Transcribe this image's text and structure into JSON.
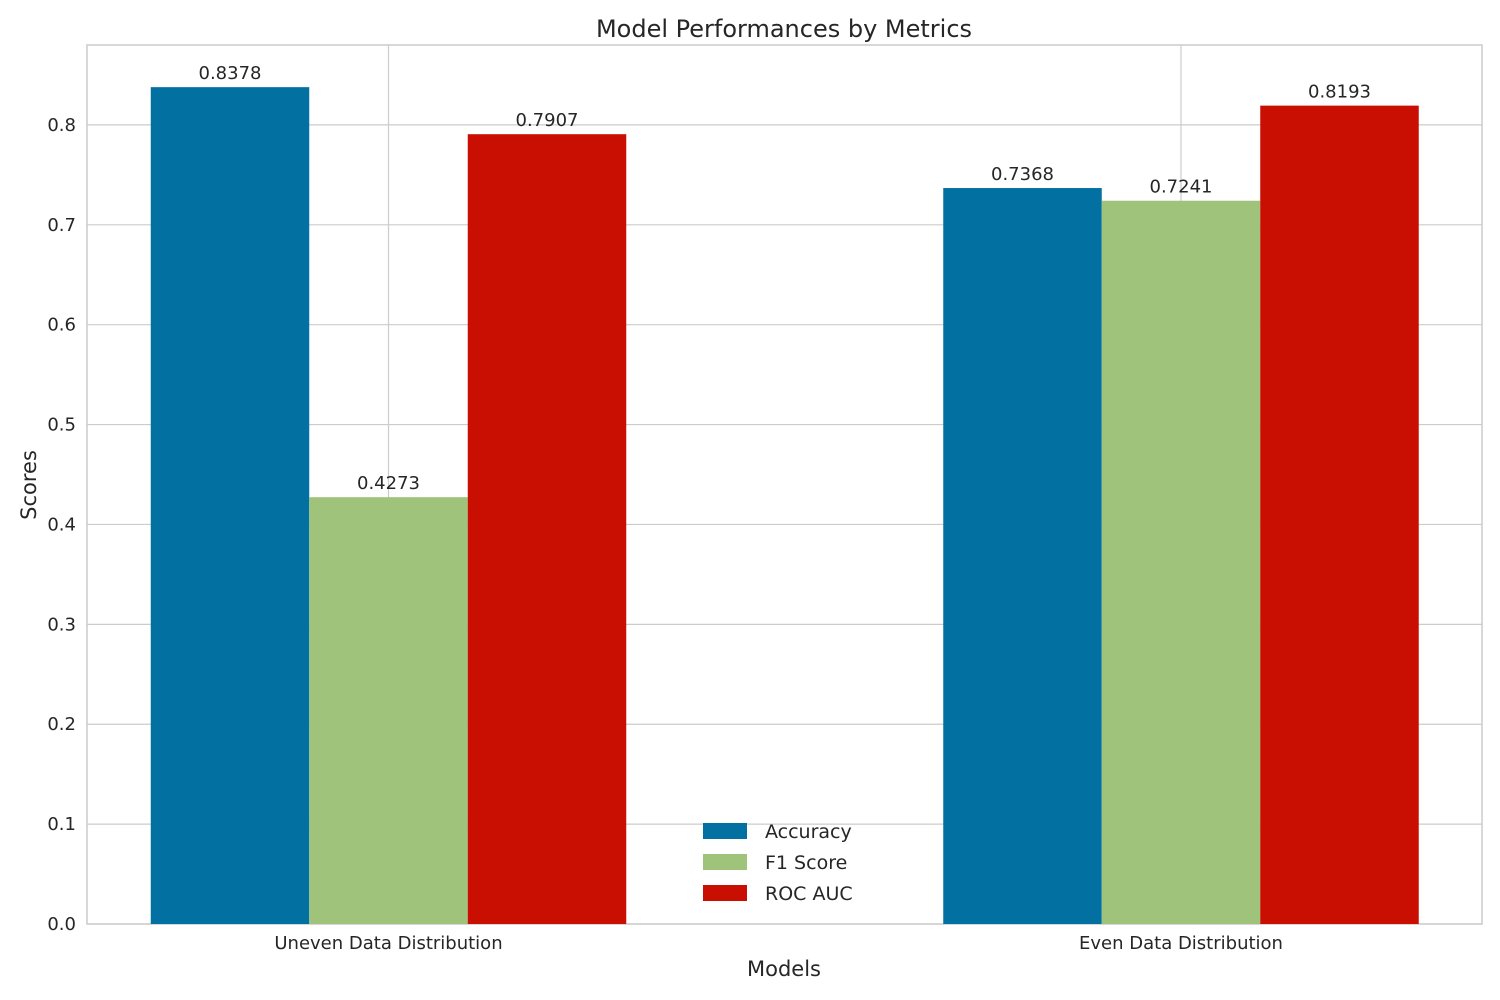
{
  "chart_data": {
    "type": "bar",
    "title": "Model Performances by Metrics",
    "xlabel": "Models",
    "ylabel": "Scores",
    "categories": [
      "Uneven Data Distribution",
      "Even Data Distribution"
    ],
    "series": [
      {
        "name": "Accuracy",
        "values": [
          0.8378,
          0.7368
        ],
        "color": "#0271a1",
        "labels": [
          "0.8378",
          "0.7368"
        ]
      },
      {
        "name": "F1 Score",
        "values": [
          0.4273,
          0.7241
        ],
        "color": "#9fc37a",
        "labels": [
          "0.4273",
          "0.7241"
        ]
      },
      {
        "name": "ROC AUC",
        "values": [
          0.7907,
          0.8193
        ],
        "color": "#c90e02",
        "labels": [
          "0.7907",
          "0.8193"
        ]
      }
    ],
    "ylim": [
      0,
      0.88
    ],
    "yticks": [
      0.0,
      0.1,
      0.2,
      0.3,
      0.4,
      0.5,
      0.6,
      0.7,
      0.8
    ],
    "ytick_labels": [
      "0.0",
      "0.1",
      "0.2",
      "0.3",
      "0.4",
      "0.5",
      "0.6",
      "0.7",
      "0.8"
    ],
    "grid": true,
    "legend_position": "bottom-center"
  }
}
